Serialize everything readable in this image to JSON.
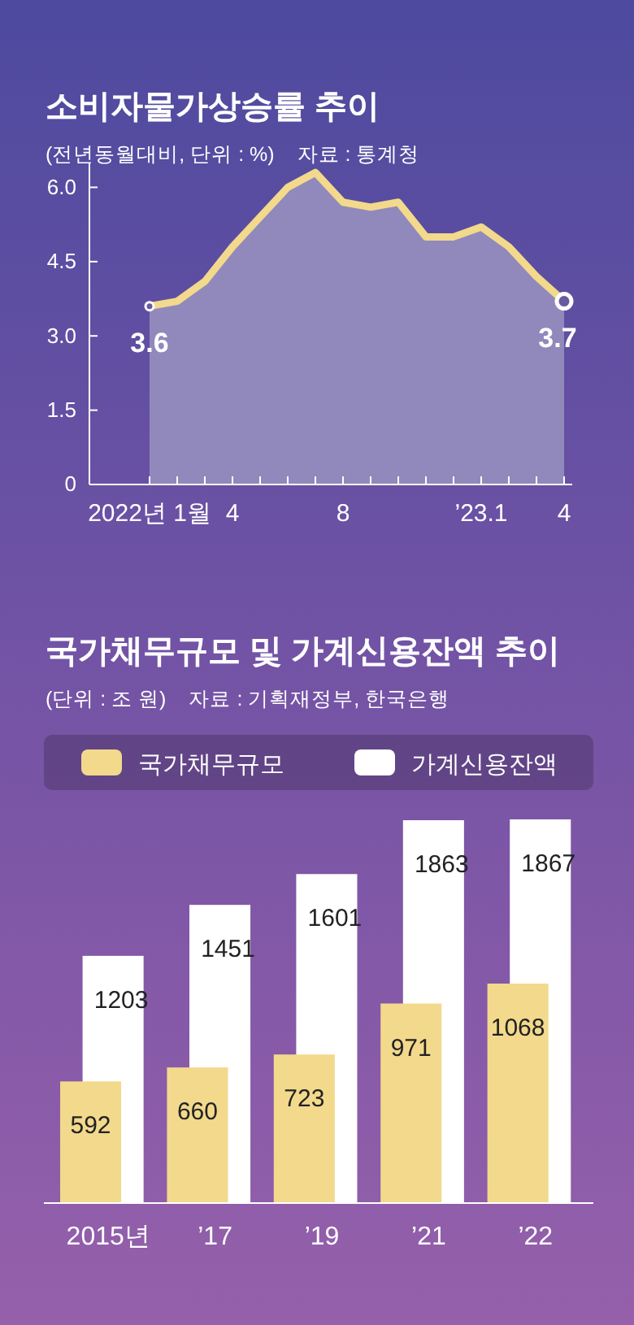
{
  "chart_data": [
    {
      "type": "area",
      "title": "소비자물가상승률 추이",
      "subtitle": "(전년동월대비, 단위 : %)",
      "annotations": [
        "자료 : 통계청"
      ],
      "categories": [
        "2022년 1월",
        null,
        null,
        "4",
        null,
        null,
        null,
        "8",
        null,
        null,
        null,
        null,
        "’23.1",
        null,
        null,
        "4"
      ],
      "series": [
        {
          "type": "area",
          "color": "#9189bc",
          "values": [
            3.6,
            3.7,
            4.1,
            4.8,
            5.4,
            6.0,
            6.3,
            5.7,
            5.6,
            5.7,
            5.0,
            5.0,
            5.2,
            4.8,
            4.2,
            3.7
          ]
        },
        {
          "type": "line",
          "color": "#f2d98c",
          "values": [
            3.6,
            3.7,
            4.1,
            4.8,
            5.4,
            6.0,
            6.3,
            5.7,
            5.6,
            5.7,
            5.0,
            5.0,
            5.2,
            4.8,
            4.2,
            3.7
          ],
          "value_labels": [
            "3.6",
            null,
            null,
            null,
            null,
            null,
            null,
            null,
            null,
            null,
            null,
            null,
            null,
            null,
            null,
            "3.7"
          ]
        }
      ],
      "ylim": [
        0,
        6.5
      ],
      "yticks": [
        0,
        1.5,
        {
          "value": 3,
          "label": "3.0"
        },
        4.5,
        {
          "value": 6,
          "label": "6.0"
        }
      ],
      "grid": false
    },
    {
      "type": "bar",
      "title": "국가채무규모 및 가계신용잔액 추이",
      "subtitle": "(단위 : 조 원)",
      "annotations": [
        "자료 : 기획재정부, 한국은행"
      ],
      "categories": [
        "2015년",
        "’17",
        "’19",
        "’21",
        "’22"
      ],
      "series": [
        {
          "name": "국가채무규모",
          "color": "#f2d98c",
          "values": [
            592,
            660,
            723,
            971,
            1068
          ]
        },
        {
          "name": "가계신용잔액",
          "color": "#ffffff",
          "values": [
            1203,
            1451,
            1601,
            1863,
            1867
          ]
        }
      ],
      "data_labels": true,
      "legend": "top",
      "tick_labels": "x"
    }
  ]
}
